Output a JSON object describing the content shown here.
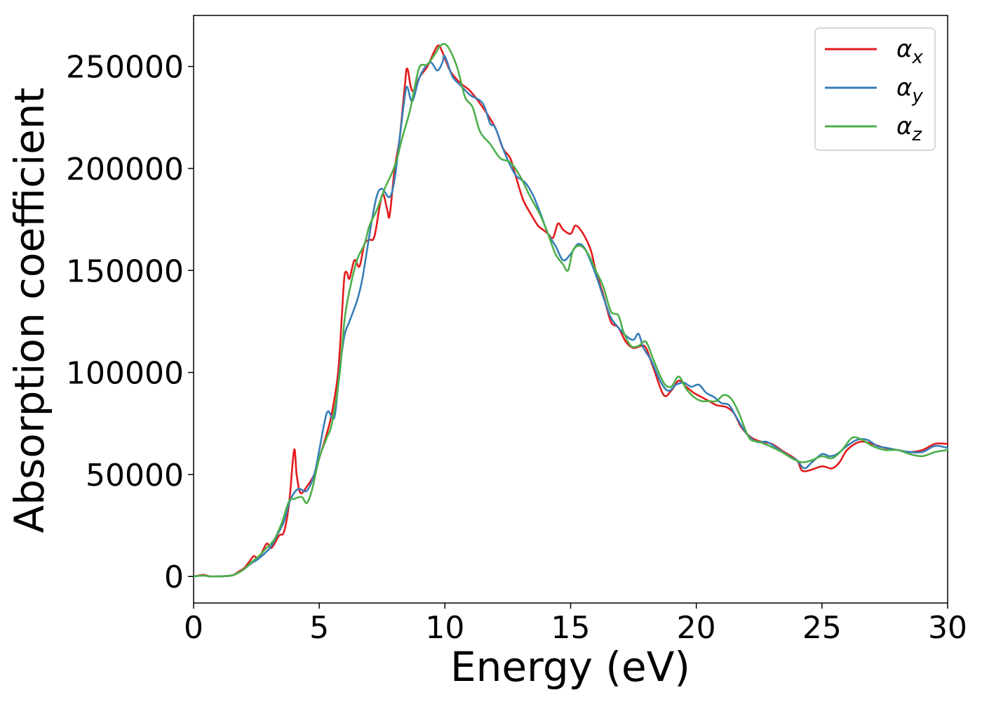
{
  "chart_data": {
    "type": "line",
    "title": "",
    "xlabel": "Energy (eV)",
    "ylabel": "Absorption coefficient",
    "xlim": [
      0,
      30
    ],
    "ylim": [
      -13000,
      275000
    ],
    "xticks": [
      0,
      5,
      10,
      15,
      20,
      25,
      30
    ],
    "yticks": [
      0,
      50000,
      100000,
      150000,
      200000,
      250000
    ],
    "xtick_labels": [
      "0",
      "5",
      "10",
      "15",
      "20",
      "25",
      "30"
    ],
    "ytick_labels": [
      "0",
      "50000",
      "100000",
      "150000",
      "200000",
      "250000"
    ],
    "grid": false,
    "legend_position": "top-right",
    "series": [
      {
        "name": "x",
        "legend_symbol": "α",
        "color": "#e41a1c",
        "points": [
          [
            0,
            0
          ],
          [
            0.4,
            800
          ],
          [
            0.7,
            0
          ],
          [
            1.5,
            500
          ],
          [
            1.8,
            2500
          ],
          [
            2.0,
            4000
          ],
          [
            2.2,
            7000
          ],
          [
            2.4,
            10000
          ],
          [
            2.6,
            9000
          ],
          [
            2.9,
            16000
          ],
          [
            3.1,
            14000
          ],
          [
            3.4,
            20000
          ],
          [
            3.6,
            22000
          ],
          [
            3.8,
            36000
          ],
          [
            4.0,
            62000
          ],
          [
            4.1,
            50000
          ],
          [
            4.25,
            41000
          ],
          [
            4.5,
            44000
          ],
          [
            4.8,
            50000
          ],
          [
            5.0,
            58000
          ],
          [
            5.3,
            70000
          ],
          [
            5.5,
            80000
          ],
          [
            5.75,
            100000
          ],
          [
            5.9,
            128000
          ],
          [
            6.0,
            147000
          ],
          [
            6.1,
            149000
          ],
          [
            6.2,
            146000
          ],
          [
            6.4,
            155000
          ],
          [
            6.6,
            152000
          ],
          [
            6.8,
            163000
          ],
          [
            7.0,
            165000
          ],
          [
            7.2,
            167000
          ],
          [
            7.5,
            187000
          ],
          [
            7.7,
            180000
          ],
          [
            7.8,
            177000
          ],
          [
            8.0,
            200000
          ],
          [
            8.2,
            215000
          ],
          [
            8.4,
            240000
          ],
          [
            8.5,
            249000
          ],
          [
            8.7,
            238000
          ],
          [
            9.0,
            245000
          ],
          [
            9.3,
            250000
          ],
          [
            9.7,
            260000
          ],
          [
            9.9,
            257000
          ],
          [
            10.2,
            248000
          ],
          [
            10.6,
            242000
          ],
          [
            11.0,
            238000
          ],
          [
            11.5,
            230000
          ],
          [
            12.0,
            220000
          ],
          [
            12.3,
            210000
          ],
          [
            12.6,
            205000
          ],
          [
            12.8,
            197000
          ],
          [
            13.1,
            185000
          ],
          [
            13.4,
            178000
          ],
          [
            13.7,
            172000
          ],
          [
            13.9,
            170000
          ],
          [
            14.1,
            168000
          ],
          [
            14.3,
            166000
          ],
          [
            14.5,
            173000
          ],
          [
            14.7,
            170000
          ],
          [
            15.0,
            168000
          ],
          [
            15.2,
            172000
          ],
          [
            15.5,
            168000
          ],
          [
            15.8,
            160000
          ],
          [
            16.0,
            150000
          ],
          [
            16.3,
            138000
          ],
          [
            16.6,
            125000
          ],
          [
            16.9,
            122000
          ],
          [
            17.2,
            115000
          ],
          [
            17.5,
            112000
          ],
          [
            17.8,
            113000
          ],
          [
            18.0,
            112000
          ],
          [
            18.3,
            102000
          ],
          [
            18.7,
            89000
          ],
          [
            19.0,
            91000
          ],
          [
            19.3,
            96000
          ],
          [
            19.6,
            93000
          ],
          [
            19.9,
            90000
          ],
          [
            20.2,
            88000
          ],
          [
            20.5,
            86000
          ],
          [
            20.8,
            84000
          ],
          [
            21.2,
            83000
          ],
          [
            21.5,
            80000
          ],
          [
            21.8,
            73000
          ],
          [
            22.2,
            68000
          ],
          [
            22.6,
            66000
          ],
          [
            23.0,
            65000
          ],
          [
            23.5,
            61000
          ],
          [
            24.0,
            57000
          ],
          [
            24.2,
            52000
          ],
          [
            24.5,
            52000
          ],
          [
            25.0,
            54000
          ],
          [
            25.4,
            53000
          ],
          [
            25.7,
            56000
          ],
          [
            26.0,
            62000
          ],
          [
            26.5,
            66000
          ],
          [
            27.0,
            65000
          ],
          [
            27.5,
            63000
          ],
          [
            28.0,
            62000
          ],
          [
            28.5,
            61000
          ],
          [
            29.0,
            62000
          ],
          [
            29.5,
            65000
          ],
          [
            30.0,
            65000
          ]
        ]
      },
      {
        "name": "y",
        "legend_symbol": "α",
        "color": "#377eb8",
        "points": [
          [
            0,
            0
          ],
          [
            0.4,
            500
          ],
          [
            0.7,
            0
          ],
          [
            1.5,
            500
          ],
          [
            1.8,
            2000
          ],
          [
            2.0,
            3500
          ],
          [
            2.3,
            6500
          ],
          [
            2.5,
            8000
          ],
          [
            2.8,
            11000
          ],
          [
            3.1,
            15000
          ],
          [
            3.4,
            22000
          ],
          [
            3.6,
            27000
          ],
          [
            3.8,
            36000
          ],
          [
            4.0,
            41000
          ],
          [
            4.2,
            43000
          ],
          [
            4.5,
            42000
          ],
          [
            4.8,
            50000
          ],
          [
            5.0,
            62000
          ],
          [
            5.2,
            75000
          ],
          [
            5.35,
            81000
          ],
          [
            5.6,
            78000
          ],
          [
            5.8,
            100000
          ],
          [
            6.0,
            118000
          ],
          [
            6.2,
            125000
          ],
          [
            6.5,
            135000
          ],
          [
            6.7,
            145000
          ],
          [
            6.9,
            160000
          ],
          [
            7.1,
            175000
          ],
          [
            7.3,
            187000
          ],
          [
            7.5,
            190000
          ],
          [
            7.8,
            186000
          ],
          [
            8.0,
            195000
          ],
          [
            8.2,
            215000
          ],
          [
            8.4,
            235000
          ],
          [
            8.5,
            240000
          ],
          [
            8.7,
            233000
          ],
          [
            9.0,
            245000
          ],
          [
            9.4,
            252000
          ],
          [
            9.7,
            248000
          ],
          [
            9.9,
            252000
          ],
          [
            10.0,
            255000
          ],
          [
            10.3,
            245000
          ],
          [
            10.6,
            241000
          ],
          [
            11.0,
            236000
          ],
          [
            11.5,
            232000
          ],
          [
            11.8,
            222000
          ],
          [
            12.0,
            220000
          ],
          [
            12.4,
            207000
          ],
          [
            12.8,
            197000
          ],
          [
            13.2,
            193000
          ],
          [
            13.5,
            187000
          ],
          [
            13.8,
            178000
          ],
          [
            14.1,
            168000
          ],
          [
            14.4,
            162000
          ],
          [
            14.7,
            155000
          ],
          [
            15.0,
            158000
          ],
          [
            15.3,
            163000
          ],
          [
            15.6,
            160000
          ],
          [
            16.0,
            148000
          ],
          [
            16.3,
            137000
          ],
          [
            16.6,
            127000
          ],
          [
            16.9,
            122000
          ],
          [
            17.2,
            118000
          ],
          [
            17.5,
            116000
          ],
          [
            17.7,
            119000
          ],
          [
            17.9,
            112000
          ],
          [
            18.2,
            106000
          ],
          [
            18.6,
            95000
          ],
          [
            18.9,
            91000
          ],
          [
            19.2,
            94000
          ],
          [
            19.5,
            95000
          ],
          [
            19.8,
            93000
          ],
          [
            20.1,
            94000
          ],
          [
            20.4,
            90000
          ],
          [
            20.7,
            88000
          ],
          [
            21.0,
            85000
          ],
          [
            21.3,
            84000
          ],
          [
            21.6,
            78000
          ],
          [
            22.0,
            70000
          ],
          [
            22.4,
            66000
          ],
          [
            22.8,
            66000
          ],
          [
            23.2,
            63000
          ],
          [
            23.7,
            59000
          ],
          [
            24.0,
            57000
          ],
          [
            24.3,
            53000
          ],
          [
            24.6,
            56000
          ],
          [
            25.0,
            60000
          ],
          [
            25.3,
            59000
          ],
          [
            25.6,
            60000
          ],
          [
            26.0,
            64000
          ],
          [
            26.4,
            67000
          ],
          [
            26.8,
            67000
          ],
          [
            27.2,
            64000
          ],
          [
            27.6,
            63000
          ],
          [
            28.0,
            62000
          ],
          [
            28.5,
            61000
          ],
          [
            29.0,
            61000
          ],
          [
            29.5,
            64000
          ],
          [
            30.0,
            63000
          ]
        ]
      },
      {
        "name": "z",
        "legend_symbol": "α",
        "color": "#4daf4a",
        "points": [
          [
            0,
            0
          ],
          [
            0.4,
            500
          ],
          [
            0.7,
            0
          ],
          [
            1.5,
            500
          ],
          [
            1.8,
            2000
          ],
          [
            2.0,
            3500
          ],
          [
            2.3,
            7000
          ],
          [
            2.6,
            10000
          ],
          [
            2.9,
            14000
          ],
          [
            3.2,
            18000
          ],
          [
            3.5,
            26000
          ],
          [
            3.8,
            37000
          ],
          [
            4.0,
            38000
          ],
          [
            4.3,
            39000
          ],
          [
            4.5,
            36000
          ],
          [
            4.7,
            42000
          ],
          [
            5.0,
            58000
          ],
          [
            5.3,
            68000
          ],
          [
            5.5,
            75000
          ],
          [
            5.8,
            98000
          ],
          [
            6.0,
            125000
          ],
          [
            6.2,
            140000
          ],
          [
            6.5,
            155000
          ],
          [
            6.8,
            163000
          ],
          [
            7.0,
            172000
          ],
          [
            7.3,
            180000
          ],
          [
            7.6,
            190000
          ],
          [
            7.9,
            198000
          ],
          [
            8.1,
            205000
          ],
          [
            8.3,
            215000
          ],
          [
            8.6,
            228000
          ],
          [
            8.8,
            240000
          ],
          [
            9.0,
            250000
          ],
          [
            9.3,
            251000
          ],
          [
            9.6,
            256000
          ],
          [
            9.8,
            260000
          ],
          [
            10.0,
            261000
          ],
          [
            10.2,
            258000
          ],
          [
            10.5,
            249000
          ],
          [
            10.8,
            235000
          ],
          [
            11.1,
            230000
          ],
          [
            11.4,
            218000
          ],
          [
            11.8,
            212000
          ],
          [
            12.2,
            205000
          ],
          [
            12.6,
            203000
          ],
          [
            13.0,
            196000
          ],
          [
            13.4,
            186000
          ],
          [
            13.8,
            177000
          ],
          [
            14.1,
            168000
          ],
          [
            14.4,
            158000
          ],
          [
            14.7,
            153000
          ],
          [
            14.9,
            150000
          ],
          [
            15.1,
            160000
          ],
          [
            15.4,
            162000
          ],
          [
            15.7,
            158000
          ],
          [
            16.0,
            150000
          ],
          [
            16.3,
            142000
          ],
          [
            16.6,
            130000
          ],
          [
            16.9,
            128000
          ],
          [
            17.1,
            120000
          ],
          [
            17.4,
            113000
          ],
          [
            17.7,
            113000
          ],
          [
            18.0,
            115000
          ],
          [
            18.3,
            106000
          ],
          [
            18.7,
            95000
          ],
          [
            19.0,
            93000
          ],
          [
            19.3,
            98000
          ],
          [
            19.6,
            92000
          ],
          [
            19.9,
            88000
          ],
          [
            20.2,
            86000
          ],
          [
            20.5,
            86000
          ],
          [
            20.8,
            86000
          ],
          [
            21.1,
            89000
          ],
          [
            21.4,
            87000
          ],
          [
            21.7,
            80000
          ],
          [
            22.1,
            68000
          ],
          [
            22.5,
            66000
          ],
          [
            22.9,
            64000
          ],
          [
            23.4,
            61000
          ],
          [
            23.8,
            58000
          ],
          [
            24.2,
            56000
          ],
          [
            24.6,
            57000
          ],
          [
            25.0,
            59000
          ],
          [
            25.4,
            58000
          ],
          [
            25.8,
            62000
          ],
          [
            26.2,
            68000
          ],
          [
            26.6,
            67000
          ],
          [
            27.0,
            64000
          ],
          [
            27.5,
            62000
          ],
          [
            28.0,
            62000
          ],
          [
            28.5,
            60000
          ],
          [
            29.0,
            59000
          ],
          [
            29.5,
            61000
          ],
          [
            30.0,
            62000
          ]
        ]
      }
    ]
  }
}
